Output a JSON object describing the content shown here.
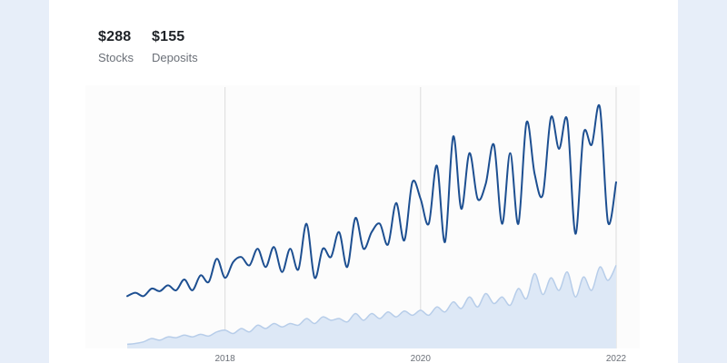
{
  "summary": [
    {
      "value": "$288",
      "label": "Stocks"
    },
    {
      "value": "$155",
      "label": "Deposits"
    }
  ],
  "colors": {
    "stocks": "#1d4f91",
    "deposits_line": "#b7cde9",
    "deposits_fill": "#dde8f6",
    "grid": "#dcdcdc"
  },
  "chart_data": {
    "type": "line",
    "x_axis": {
      "ticks": [
        "2018",
        "2020",
        "2022"
      ],
      "range": [
        "2017-01",
        "2022-01"
      ]
    },
    "y_axis": {
      "visible": false,
      "range": [
        0,
        310
      ]
    },
    "grid": "vertical lines at year ticks",
    "series": [
      {
        "name": "Stocks",
        "color": "#1d4f91",
        "x": [
          "2017-01",
          "2017-02",
          "2017-03",
          "2017-04",
          "2017-05",
          "2017-06",
          "2017-07",
          "2017-08",
          "2017-09",
          "2017-10",
          "2017-11",
          "2017-12",
          "2018-01",
          "2018-02",
          "2018-03",
          "2018-04",
          "2018-05",
          "2018-06",
          "2018-07",
          "2018-08",
          "2018-09",
          "2018-10",
          "2018-11",
          "2018-12",
          "2019-01",
          "2019-02",
          "2019-03",
          "2019-04",
          "2019-05",
          "2019-06",
          "2019-07",
          "2019-08",
          "2019-09",
          "2019-10",
          "2019-11",
          "2019-12",
          "2020-01",
          "2020-02",
          "2020-03",
          "2020-04",
          "2020-05",
          "2020-06",
          "2020-07",
          "2020-08",
          "2020-09",
          "2020-10",
          "2020-11",
          "2020-12",
          "2021-01",
          "2021-02",
          "2021-03",
          "2021-04",
          "2021-05",
          "2021-06",
          "2021-07",
          "2021-08",
          "2021-09",
          "2021-10",
          "2021-11",
          "2021-12",
          "2022-01"
        ],
        "values": [
          63,
          67,
          63,
          72,
          69,
          76,
          70,
          83,
          70,
          88,
          80,
          108,
          85,
          104,
          110,
          100,
          120,
          98,
          122,
          92,
          120,
          95,
          150,
          85,
          120,
          110,
          140,
          98,
          157,
          120,
          140,
          150,
          125,
          175,
          130,
          200,
          180,
          150,
          220,
          128,
          255,
          168,
          235,
          180,
          198,
          245,
          150,
          235,
          150,
          272,
          210,
          185,
          278,
          240,
          275,
          138,
          258,
          245,
          290,
          152,
          200
        ]
      },
      {
        "name": "Deposits",
        "color": "#b7cde9",
        "x": [
          "2017-01",
          "2017-02",
          "2017-03",
          "2017-04",
          "2017-05",
          "2017-06",
          "2017-07",
          "2017-08",
          "2017-09",
          "2017-10",
          "2017-11",
          "2017-12",
          "2018-01",
          "2018-02",
          "2018-03",
          "2018-04",
          "2018-05",
          "2018-06",
          "2018-07",
          "2018-08",
          "2018-09",
          "2018-10",
          "2018-11",
          "2018-12",
          "2019-01",
          "2019-02",
          "2019-03",
          "2019-04",
          "2019-05",
          "2019-06",
          "2019-07",
          "2019-08",
          "2019-09",
          "2019-10",
          "2019-11",
          "2019-12",
          "2020-01",
          "2020-02",
          "2020-03",
          "2020-04",
          "2020-05",
          "2020-06",
          "2020-07",
          "2020-08",
          "2020-09",
          "2020-10",
          "2020-11",
          "2020-12",
          "2021-01",
          "2021-02",
          "2021-03",
          "2021-04",
          "2021-05",
          "2021-06",
          "2021-07",
          "2021-08",
          "2021-09",
          "2021-10",
          "2021-11",
          "2021-12",
          "2022-01"
        ],
        "values": [
          5,
          6,
          8,
          12,
          10,
          14,
          13,
          16,
          14,
          17,
          15,
          20,
          22,
          18,
          24,
          20,
          28,
          24,
          30,
          26,
          30,
          28,
          36,
          30,
          38,
          34,
          36,
          32,
          42,
          34,
          42,
          36,
          44,
          38,
          45,
          40,
          46,
          40,
          50,
          44,
          56,
          48,
          62,
          50,
          66,
          54,
          62,
          52,
          72,
          60,
          90,
          65,
          85,
          70,
          92,
          62,
          86,
          70,
          98,
          82,
          100
        ]
      }
    ]
  }
}
